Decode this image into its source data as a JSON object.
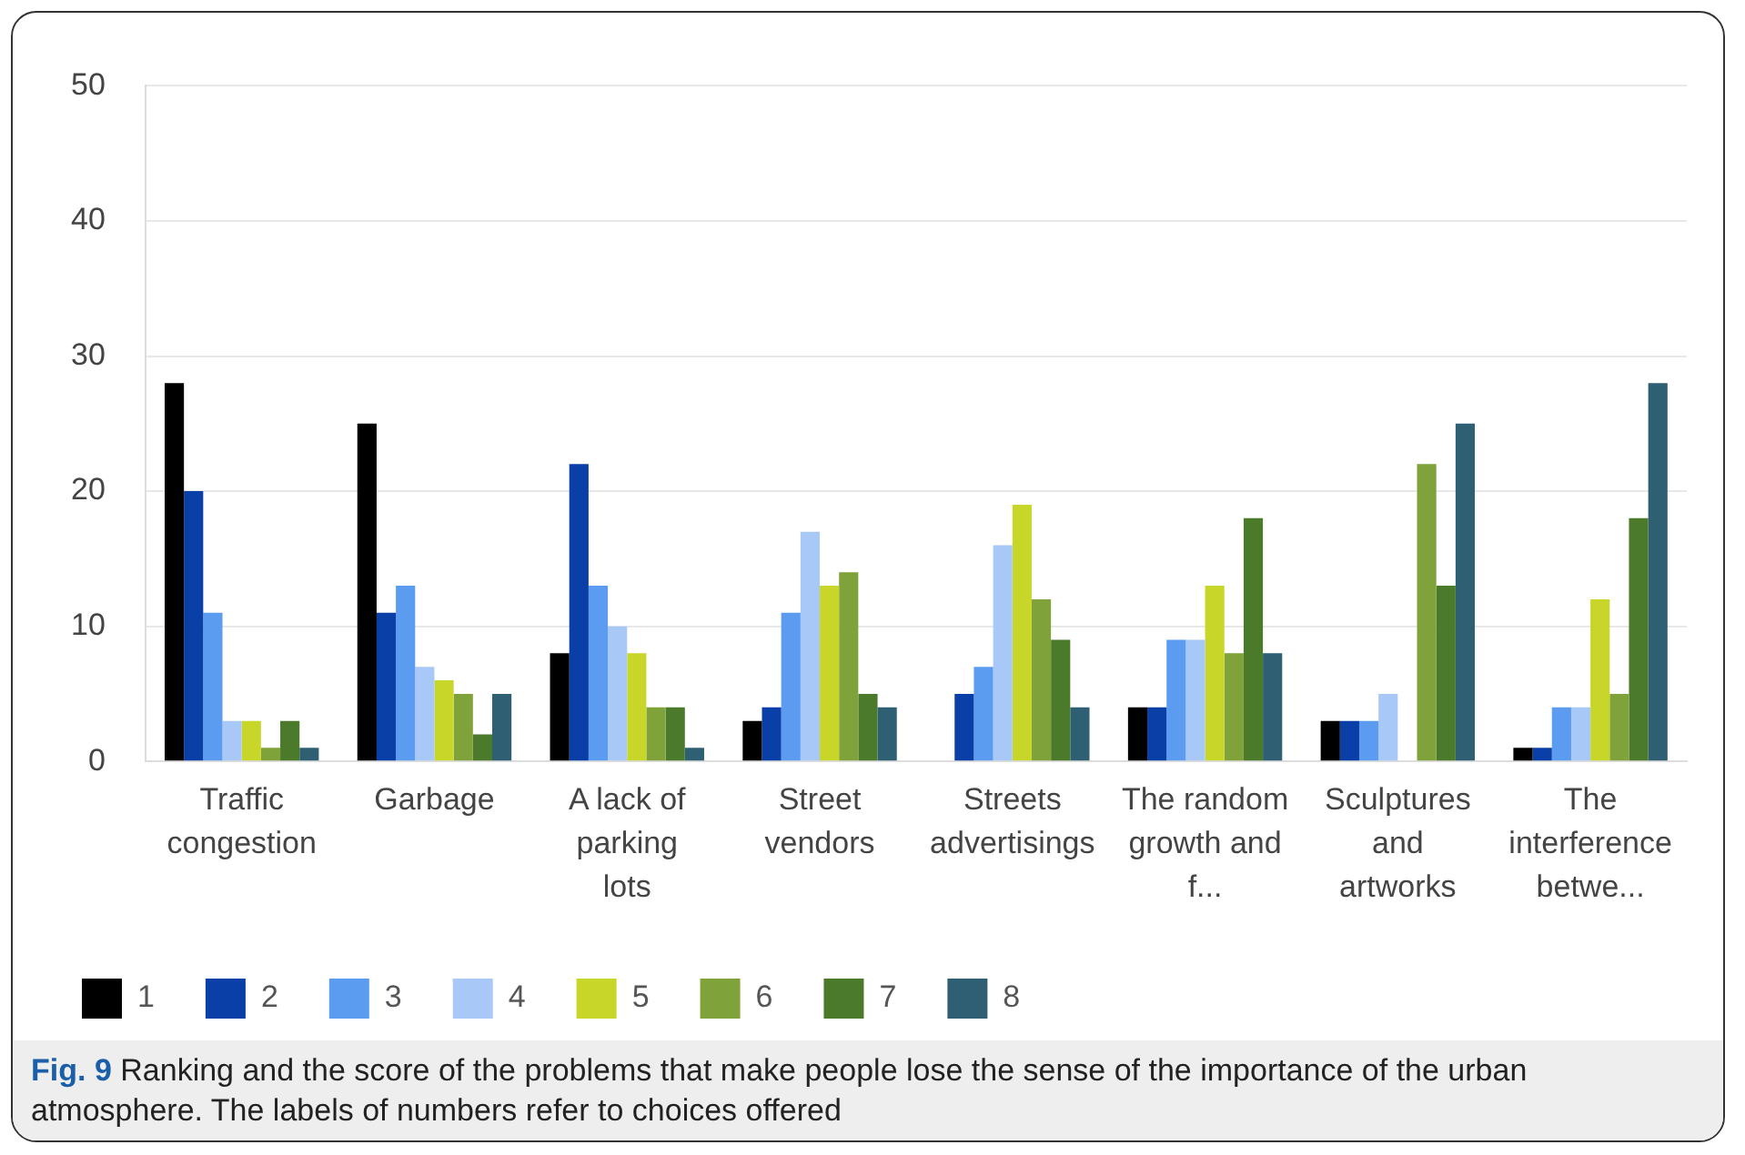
{
  "chart_data": {
    "type": "bar",
    "categories": [
      "Traffic congestion",
      "Garbage",
      "A lack of parking lots",
      "Street vendors",
      "Streets advertisings",
      "The random growth and f...",
      "Sculptures and artworks",
      "The interference betwe..."
    ],
    "series": [
      {
        "name": "1",
        "color": "#000000",
        "values": [
          28,
          25,
          8,
          3,
          0,
          4,
          3,
          1
        ]
      },
      {
        "name": "2",
        "color": "#0a3fa8",
        "values": [
          20,
          11,
          22,
          4,
          5,
          4,
          3,
          1
        ]
      },
      {
        "name": "3",
        "color": "#5b9bf0",
        "values": [
          11,
          13,
          13,
          11,
          7,
          9,
          3,
          4
        ]
      },
      {
        "name": "4",
        "color": "#a8c8f8",
        "values": [
          3,
          7,
          10,
          17,
          16,
          9,
          5,
          4
        ]
      },
      {
        "name": "5",
        "color": "#c8d62a",
        "values": [
          3,
          6,
          8,
          13,
          19,
          13,
          0,
          12
        ]
      },
      {
        "name": "6",
        "color": "#7fa23a",
        "values": [
          1,
          5,
          4,
          14,
          12,
          8,
          22,
          5
        ]
      },
      {
        "name": "7",
        "color": "#4a7a2a",
        "values": [
          3,
          2,
          4,
          5,
          9,
          18,
          13,
          18
        ]
      },
      {
        "name": "8",
        "color": "#2e5f73",
        "values": [
          1,
          5,
          1,
          4,
          4,
          8,
          25,
          28
        ]
      }
    ],
    "ylim": [
      0,
      50
    ],
    "yticks": [
      0,
      10,
      20,
      30,
      40,
      50
    ],
    "grid": "y",
    "legend": "bottom left",
    "annotations": [
      "Fig. 9",
      "Ranking and the score of the problems that make people lose the sense of the importance of the urban atmosphere. The labels of numbers refer to choices offered"
    ]
  }
}
